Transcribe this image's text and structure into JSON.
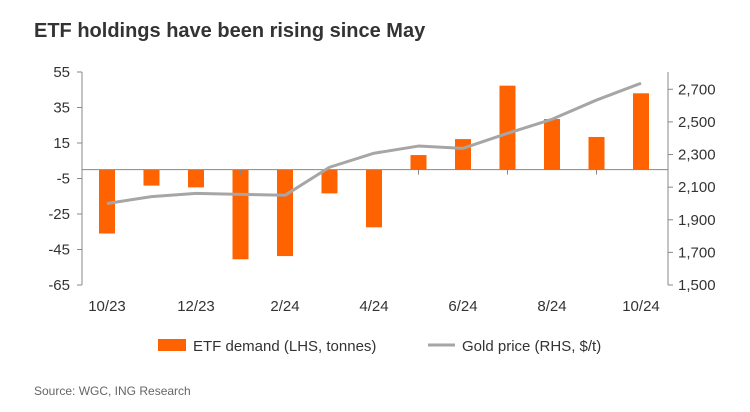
{
  "chart_data": {
    "type": "bar+line",
    "title": "ETF holdings have been rising since May",
    "source": "Source: WGC, ING Research",
    "categories": [
      "10/23",
      "11/23",
      "12/23",
      "1/24",
      "2/24",
      "3/24",
      "4/24",
      "5/24",
      "6/24",
      "7/24",
      "8/24",
      "9/24",
      "10/24"
    ],
    "x_tick_labels": [
      "10/23",
      "12/23",
      "2/24",
      "4/24",
      "6/24",
      "8/24",
      "10/24"
    ],
    "series": [
      {
        "name": "ETF demand (LHS, tonnes)",
        "type": "bar",
        "axis": "left",
        "color": "#FF6200",
        "values": [
          -36,
          -9,
          -10,
          -50.5,
          -48.7,
          -13.4,
          -32.5,
          8.2,
          17.2,
          47.3,
          28.5,
          18.4,
          43
        ]
      },
      {
        "name": "Gold price (RHS, $/t)",
        "type": "line",
        "axis": "right",
        "color": "#A6A6A6",
        "values": [
          2000,
          2042,
          2062,
          2056,
          2050,
          2222,
          2308,
          2352,
          2338,
          2430,
          2516,
          2634,
          2737
        ]
      }
    ],
    "left_axis": {
      "ylim": [
        -65,
        55
      ],
      "ticks": [
        55,
        35,
        15,
        -5,
        -25,
        -45,
        -65
      ],
      "tick_labels": [
        "55",
        "35",
        "15",
        "-5",
        "-25",
        "-45",
        "-65"
      ]
    },
    "right_axis": {
      "ylim": [
        1500,
        2800
      ],
      "ticks": [
        2700,
        2500,
        2300,
        2100,
        1900,
        1700,
        1500
      ],
      "tick_labels": [
        "2,700",
        "2,500",
        "2,300",
        "2,100",
        "1,900",
        "1,700",
        "1,500"
      ]
    },
    "legend_position": "bottom",
    "grid": false
  }
}
